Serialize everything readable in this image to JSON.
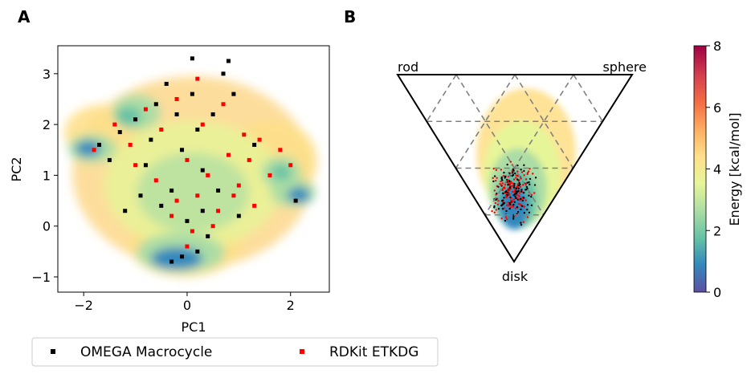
{
  "panels": {
    "a": "A",
    "b": "B"
  },
  "chart_data": [
    {
      "type": "scatter",
      "panel": "A",
      "xlabel": "PC1",
      "ylabel": "PC2",
      "xlim": [
        -2.5,
        2.75
      ],
      "ylim": [
        -1.3,
        3.55
      ],
      "xticks": [
        -2,
        0,
        2
      ],
      "xtick_labels": [
        "−2",
        "0",
        "2"
      ],
      "yticks": [
        -1,
        0,
        1,
        2,
        3
      ],
      "ytick_labels": [
        "−1",
        "0",
        "1",
        "2",
        "3"
      ],
      "background": "energy-colored density cloud",
      "series": [
        {
          "name": "OMEGA Macrocycle",
          "color": "#000000",
          "marker": "square",
          "points": [
            [
              -1.7,
              1.6
            ],
            [
              -1.5,
              1.3
            ],
            [
              -1.3,
              1.85
            ],
            [
              -1.0,
              2.1
            ],
            [
              -0.8,
              1.2
            ],
            [
              -0.6,
              2.4
            ],
            [
              -0.4,
              2.8
            ],
            [
              -0.2,
              2.2
            ],
            [
              -0.1,
              1.5
            ],
            [
              0.1,
              2.6
            ],
            [
              0.2,
              1.9
            ],
            [
              0.3,
              1.1
            ],
            [
              0.5,
              2.2
            ],
            [
              0.7,
              3.0
            ],
            [
              0.8,
              3.25
            ],
            [
              0.1,
              3.3
            ],
            [
              -0.3,
              0.7
            ],
            [
              -0.5,
              0.4
            ],
            [
              0.0,
              0.1
            ],
            [
              0.3,
              0.3
            ],
            [
              0.6,
              0.7
            ],
            [
              -0.1,
              -0.6
            ],
            [
              -0.3,
              -0.7
            ],
            [
              0.2,
              -0.5
            ],
            [
              1.0,
              0.2
            ],
            [
              -0.9,
              0.6
            ],
            [
              -1.2,
              0.3
            ],
            [
              1.3,
              1.6
            ],
            [
              2.1,
              0.5
            ],
            [
              0.4,
              -0.2
            ],
            [
              -0.7,
              1.7
            ],
            [
              0.9,
              2.6
            ]
          ]
        },
        {
          "name": "RDKit ETKDG",
          "color": "#ff0000",
          "marker": "square",
          "points": [
            [
              -1.8,
              1.5
            ],
            [
              -1.4,
              2.0
            ],
            [
              -1.1,
              1.6
            ],
            [
              -0.8,
              2.3
            ],
            [
              -0.5,
              1.9
            ],
            [
              -0.2,
              2.5
            ],
            [
              0.0,
              1.3
            ],
            [
              0.2,
              0.6
            ],
            [
              0.4,
              1.0
            ],
            [
              0.6,
              0.3
            ],
            [
              0.8,
              1.4
            ],
            [
              1.0,
              0.8
            ],
            [
              1.2,
              1.3
            ],
            [
              1.4,
              1.7
            ],
            [
              1.6,
              1.0
            ],
            [
              1.8,
              1.5
            ],
            [
              2.0,
              1.2
            ],
            [
              -0.3,
              0.2
            ],
            [
              0.1,
              -0.1
            ],
            [
              0.5,
              0.0
            ],
            [
              -0.6,
              0.9
            ],
            [
              0.3,
              2.0
            ],
            [
              0.0,
              -0.4
            ],
            [
              -0.2,
              0.5
            ],
            [
              0.9,
              0.6
            ],
            [
              1.3,
              0.4
            ],
            [
              -1.0,
              1.2
            ],
            [
              0.7,
              2.4
            ],
            [
              1.1,
              1.8
            ],
            [
              0.2,
              2.9
            ]
          ]
        }
      ]
    },
    {
      "type": "scatter",
      "panel": "B",
      "plot": "ternary",
      "corner_labels": {
        "top_left": "rod",
        "top_right": "sphere",
        "bottom": "disk"
      },
      "grid": "dashed",
      "series": [
        {
          "name": "OMEGA Macrocycle",
          "color": "#000000",
          "marker": "dot"
        },
        {
          "name": "RDKit ETKDG",
          "color": "#ff0000",
          "marker": "dot"
        }
      ]
    }
  ],
  "colorbar": {
    "label": "Energy [kcal/mol]",
    "min": 0,
    "max": 8,
    "ticks": [
      "0",
      "2",
      "4",
      "6",
      "8"
    ],
    "colormap": [
      "#5e4fa2",
      "#3288bd",
      "#66c2a5",
      "#abdda4",
      "#e6f598",
      "#fee08b",
      "#fdae61",
      "#f46d43",
      "#d53e4f",
      "#9e0142"
    ]
  },
  "legend": {
    "items": [
      {
        "label": "OMEGA Macrocycle",
        "color": "#000000"
      },
      {
        "label": "RDKit ETKDG",
        "color": "#ff0000"
      }
    ]
  }
}
